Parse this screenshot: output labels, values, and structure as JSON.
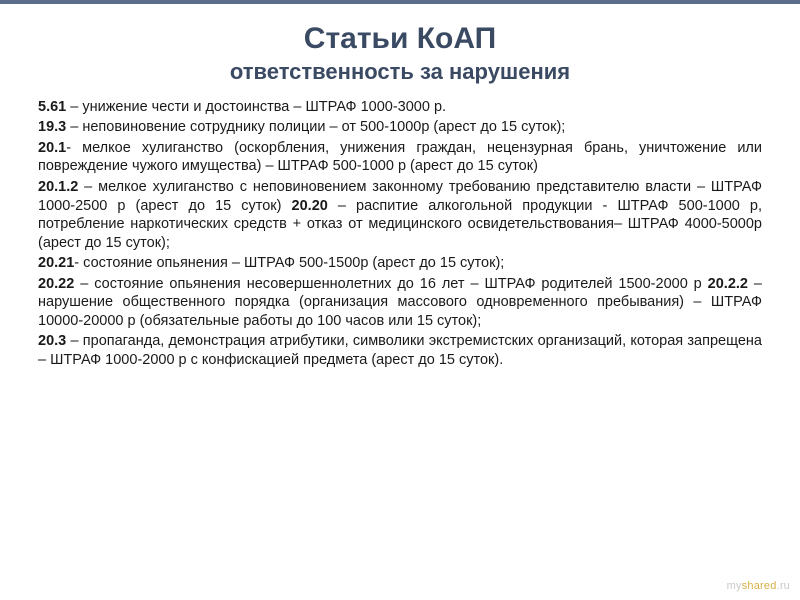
{
  "colors": {
    "accent_bar": "#5b6d8a",
    "title_color": "#3a4a63",
    "body_color": "#1a1a1a",
    "background": "#ffffff",
    "watermark_gray": "#c9c9c9",
    "watermark_gold": "#d6b24a"
  },
  "typography": {
    "title_main_fontsize": 30,
    "title_sub_fontsize": 22,
    "body_fontsize": 14.5,
    "font_family": "Arial"
  },
  "title": {
    "main": "Статьи КоАП",
    "sub": "ответственность за нарушения"
  },
  "items": [
    {
      "num": "5.61",
      "text": " – унижение чести и достоинства – ШТРАФ 1000-3000 р."
    },
    {
      "num": "19.3",
      "text": " – неповиновение сотруднику полиции – от 500-1000р (арест до 15 суток);"
    },
    {
      "num": "20.1",
      "text": "- мелкое хулиганство (оскорбления, унижения граждан, нецензурная брань, уничтожение или повреждение чужого имущества) – ШТРАФ 500-1000 р (арест до 15 суток)"
    },
    {
      "num": "20.1.2",
      "text": " – мелкое хулиганство с неповиновением законному требованию представителю власти – ШТРАФ 1000-2500 р (арест до 15 суток) ",
      "num2": "20.20",
      "text2": " – распитие алкогольной продукции - ШТРАФ 500-1000 р, потребление наркотических средств + отказ от медицинского освидетельствования– ШТРАФ 4000-5000р (арест до 15 суток);"
    },
    {
      "num": "20.21",
      "text": "- состояние опьянения – ШТРАФ 500-1500р (арест до 15 суток);"
    },
    {
      "num": "20.22",
      "text": " – состояние опьянения несовершеннолетних до 16 лет – ШТРАФ родителей 1500-2000 р ",
      "num2": "20.2.2",
      "text2": " – нарушение общественного порядка (организация массового одновременного пребывания) – ШТРАФ 10000-20000 р (обязательные работы до 100 часов или 15 суток);"
    },
    {
      "num": "20.3",
      "text": " – пропаганда, демонстрация атрибутики, символики экстремистских организаций, которая запрещена – ШТРАФ 1000-2000 р с конфискацией предмета (арест до 15 суток)."
    }
  ],
  "watermark": {
    "part1": "my",
    "part2": "shared",
    "part3": ".ru"
  }
}
